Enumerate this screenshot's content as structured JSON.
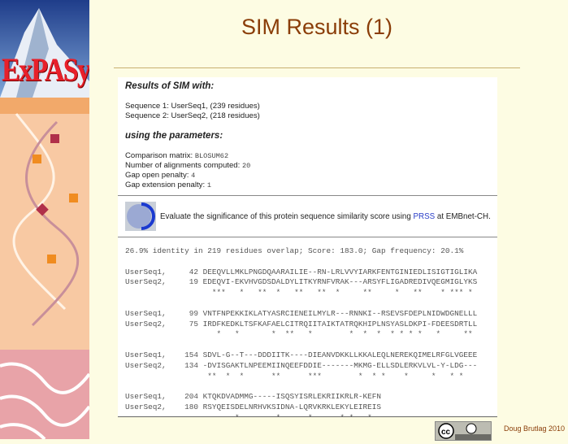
{
  "slide": {
    "title": "SIM Results (1)",
    "author": "Doug Brutlag 2010",
    "logo_text": "ExPASy",
    "license_badge": "cc-by-icon",
    "colors": {
      "title": "#8a3d08",
      "background": "#fdfce3",
      "logo": "#e8202a",
      "link": "#2a3ec8"
    }
  },
  "results": {
    "heading": "Results of SIM with:",
    "sequence1": "Sequence 1: UserSeq1, (239 residues)",
    "sequence2": "Sequence 2: UserSeq2, (218 residues)",
    "params_heading": "using the parameters:",
    "params": [
      {
        "label": "Comparison matrix: ",
        "value": "BLOSUM62"
      },
      {
        "label": "Number of alignments computed: ",
        "value": "20"
      },
      {
        "label": "Gap open penalty: ",
        "value": "4"
      },
      {
        "label": "Gap extension penalty: ",
        "value": "1"
      }
    ],
    "prss": {
      "before": "Evaluate the significance of this protein sequence similarity score using ",
      "link": "PRSS",
      "after": " at EMBnet-CH."
    },
    "alignment": "26.9% identity in 219 residues overlap; Score: 183.0; Gap frequency: 20.1%\n\nUserSeq1,     42 DEEQVLLMKLPNGDQAARAILIE--RN-LRLVVYIARKFENTGINIEDLISIGTIGLIKA\nUserSeq2,     19 EDEQVI-EKVHVGDSDALDYLITKYRNFVRAK---ARSYFLIGADREDIVQEGMIGLYKS\n                   ***   *   **  *   **   **  *     **     *   **    * *** *\n\nUserSeq1,     99 VNTFNPEKKIKLATYASRCIENEILMYLR---RNNKI--RSEVSFDEPLNIDWDGNELLL\nUserSeq2,     75 IRDFKEDKLTSFKAFAELCITRQIITAIKTATRQKHIPLNSYASLDKPI-FDEESDRTLL\n                    *   *       *  **   *        *  *  *  * * * *   *     **\n\nUserSeq1,    154 SDVL-G--T---DDDIITK----DIEANVDKKLLKKALEQLNEREKQIMELRFGLVGEEE\nUserSeq2,    134 -DVISGAKTLNPEEMIINQEEFDDIE-------MKMG-ELLSDLERKVLVL-Y-LDG---\n                  **  *  *      **      ***        *  * *    *     *   * *\n\nUserSeq1,    204 KTQKDVADMMG-----ISQSYISRLEKRIIKRLR-KEFN\nUserSeq2,    180 RSYQEISDELNRHVKSIDNA-LQRVKRKLEKYLEIREIS\n                        *        *      *      * *   *"
  }
}
